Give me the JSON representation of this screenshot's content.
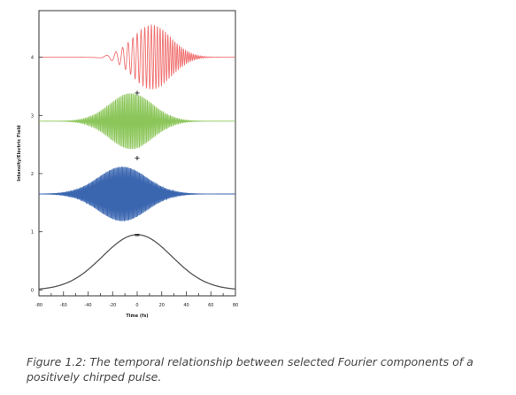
{
  "chart_data": {
    "type": "line",
    "xlabel": "Time (fs)",
    "ylabel": "Intensity/Electric Field",
    "xlim": [
      -80,
      80
    ],
    "ylim": [
      -0.1,
      4.8
    ],
    "x_ticks": [
      "-80",
      "-60",
      "-40",
      "-20",
      "0",
      "20",
      "40",
      "60",
      "80"
    ],
    "y_ticks": [
      "0",
      "1",
      "2",
      "3",
      "4"
    ],
    "series": [
      {
        "baseline": 4.0,
        "kind": "oscillating",
        "color": "#f07070",
        "amplitude": 0.55,
        "center_fs": 12,
        "width_fs": 22,
        "freq_cycles_per_fs": 0.3,
        "chirp": 0.004
      },
      {
        "baseline": 2.9,
        "kind": "oscillating",
        "color": "#8cc65a",
        "amplitude": 0.48,
        "center_fs": -5,
        "width_fs": 25,
        "freq_cycles_per_fs": 0.85,
        "chirp": 0.0
      },
      {
        "baseline": 1.65,
        "kind": "oscillating",
        "color": "#3a66b0",
        "amplitude": 0.47,
        "center_fs": -12,
        "width_fs": 28,
        "freq_cycles_per_fs": 1.1,
        "chirp": 0.0
      },
      {
        "baseline": 0.0,
        "kind": "envelope",
        "color": "#555555",
        "amplitude": 0.95,
        "center_fs": 0,
        "width_fs": 40
      }
    ],
    "operators": [
      "+",
      "+",
      "="
    ]
  },
  "caption": "Figure 1.2: The temporal relationship between selected Fourier components of a positively chirped pulse."
}
